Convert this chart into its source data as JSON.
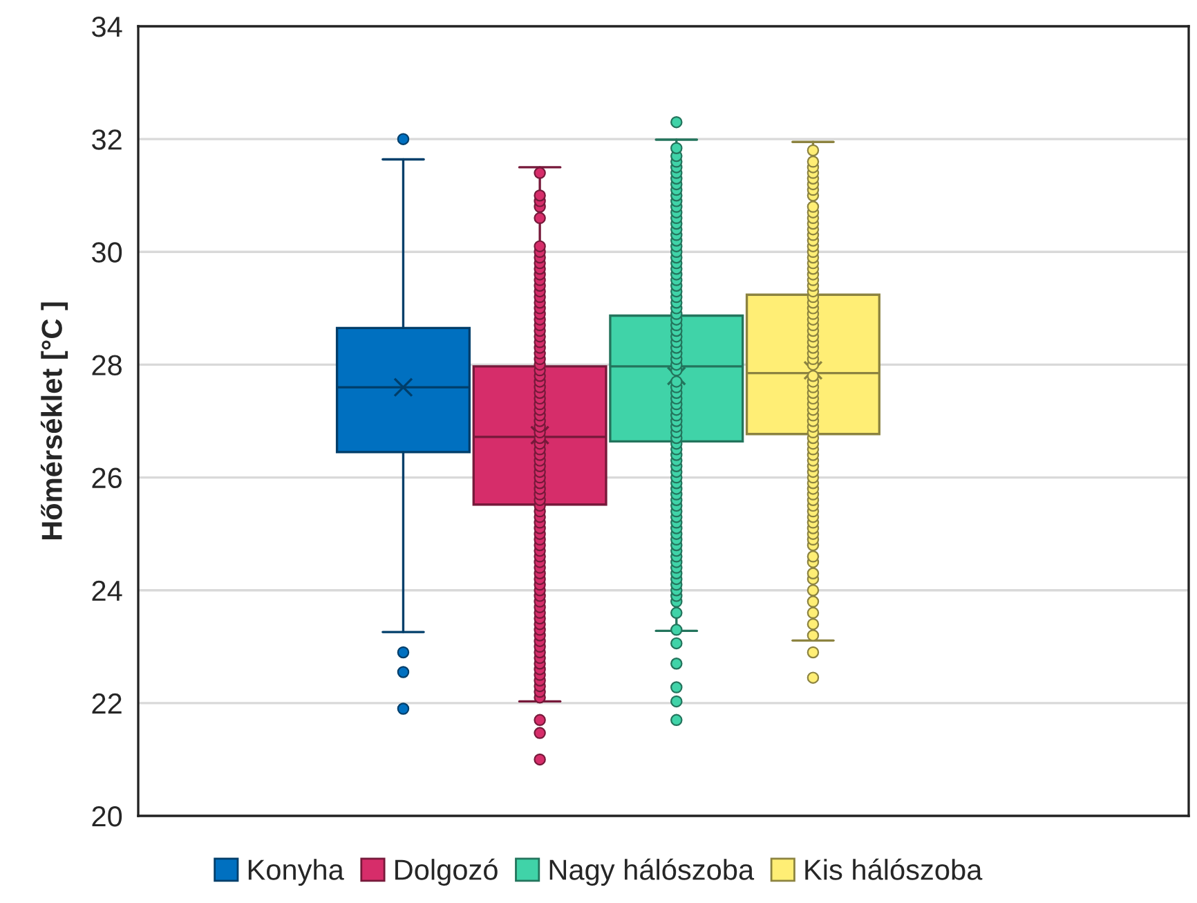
{
  "chart_data": {
    "type": "box",
    "ylabel": "Hőmérséklet [°C ]",
    "categories": [
      null
    ],
    "ylim": [
      20,
      34
    ],
    "yticks": [
      20,
      22,
      24,
      26,
      28,
      30,
      32,
      34
    ],
    "grid": "y",
    "legend": "bottom",
    "marker": "circle",
    "series": [
      {
        "name": "Konyha",
        "color": "#0070c0",
        "boxes": [
          {
            "low": 23.26,
            "q1": 26.45,
            "median": 27.6,
            "q3": 28.65,
            "high": 31.64,
            "mean": 27.6,
            "outliers": [
              32.0,
              22.9,
              22.55,
              21.9
            ]
          }
        ]
      },
      {
        "name": "Dolgozó",
        "color": "#d62d6a",
        "boxes": [
          {
            "low": 22.03,
            "q1": 25.52,
            "median": 26.72,
            "q3": 27.97,
            "high": 31.5,
            "mean": 26.75,
            "outliers": [
              21.7,
              21.47,
              21.0,
              22.1,
              22.2,
              22.3,
              22.4,
              22.5,
              22.6,
              22.7,
              22.8,
              22.9,
              23.0,
              23.1,
              23.2,
              23.3,
              23.4,
              23.5,
              23.6,
              23.7,
              23.8,
              23.9,
              24.0,
              24.1,
              24.2,
              24.3,
              24.4,
              24.5,
              24.6,
              24.7,
              24.8,
              24.9,
              25.0,
              25.1,
              25.2,
              25.3,
              25.4,
              25.5,
              25.6,
              25.7,
              25.8,
              25.9,
              26.0,
              26.1,
              26.2,
              26.3,
              26.4,
              26.5,
              26.6,
              26.7,
              26.8,
              26.9,
              27.0,
              27.1,
              27.2,
              27.3,
              27.4,
              27.5,
              27.6,
              27.7,
              27.8,
              27.9,
              28.0,
              28.1,
              28.2,
              28.3,
              28.4,
              28.5,
              28.6,
              28.7,
              28.8,
              28.9,
              29.0,
              29.1,
              29.2,
              29.3,
              29.4,
              29.5,
              29.6,
              29.7,
              29.8,
              29.9,
              30.0,
              30.1,
              30.6,
              30.8,
              30.9,
              31.0,
              31.4
            ]
          }
        ]
      },
      {
        "name": "Nagy hálószoba",
        "color": "#40d3a8",
        "boxes": [
          {
            "low": 23.28,
            "q1": 26.64,
            "median": 27.97,
            "q3": 28.87,
            "high": 31.99,
            "mean": 27.8,
            "outliers": [
              32.3,
              23.06,
              22.7,
              22.28,
              22.03,
              21.7,
              23.3,
              23.6,
              23.8,
              23.9,
              24.0,
              24.1,
              24.2,
              24.3,
              24.4,
              24.5,
              24.6,
              24.7,
              24.8,
              24.9,
              25.0,
              25.1,
              25.2,
              25.3,
              25.4,
              25.5,
              25.6,
              25.7,
              25.8,
              25.9,
              26.0,
              26.1,
              26.2,
              26.3,
              26.4,
              26.5,
              26.6,
              26.7,
              26.8,
              26.9,
              27.0,
              27.1,
              27.2,
              27.3,
              27.4,
              27.5,
              27.6,
              27.7,
              27.9,
              28.0,
              28.1,
              28.2,
              28.3,
              28.4,
              28.5,
              28.6,
              28.7,
              28.8,
              28.9,
              29.0,
              29.1,
              29.2,
              29.3,
              29.4,
              29.5,
              29.6,
              29.7,
              29.8,
              29.9,
              30.0,
              30.1,
              30.2,
              30.3,
              30.4,
              30.5,
              30.6,
              30.7,
              30.8,
              30.9,
              31.0,
              31.1,
              31.2,
              31.3,
              31.4,
              31.5,
              31.6,
              31.7,
              31.84
            ]
          }
        ]
      },
      {
        "name": "Kis hálószoba",
        "color": "#ffee75",
        "boxes": [
          {
            "low": 23.11,
            "q1": 26.77,
            "median": 27.85,
            "q3": 29.24,
            "high": 31.95,
            "mean": 27.9,
            "outliers": [
              22.9,
              22.45,
              23.2,
              23.4,
              23.6,
              23.8,
              24.0,
              24.2,
              24.3,
              24.5,
              24.6,
              24.8,
              24.9,
              25.0,
              25.1,
              25.2,
              25.3,
              25.4,
              25.5,
              25.6,
              25.7,
              25.8,
              25.9,
              26.0,
              26.1,
              26.2,
              26.3,
              26.4,
              26.5,
              26.6,
              26.7,
              26.8,
              26.9,
              27.0,
              27.1,
              27.2,
              27.3,
              27.4,
              27.5,
              27.6,
              27.7,
              27.8,
              28.0,
              28.1,
              28.2,
              28.3,
              28.4,
              28.5,
              28.6,
              28.7,
              28.8,
              28.9,
              29.0,
              29.1,
              29.2,
              29.3,
              29.4,
              29.5,
              29.6,
              29.7,
              29.8,
              29.9,
              30.0,
              30.1,
              30.2,
              30.3,
              30.4,
              30.5,
              30.6,
              30.7,
              30.8,
              31.0,
              31.1,
              31.2,
              31.3,
              31.4,
              31.5,
              31.6,
              31.8
            ]
          }
        ]
      }
    ]
  }
}
